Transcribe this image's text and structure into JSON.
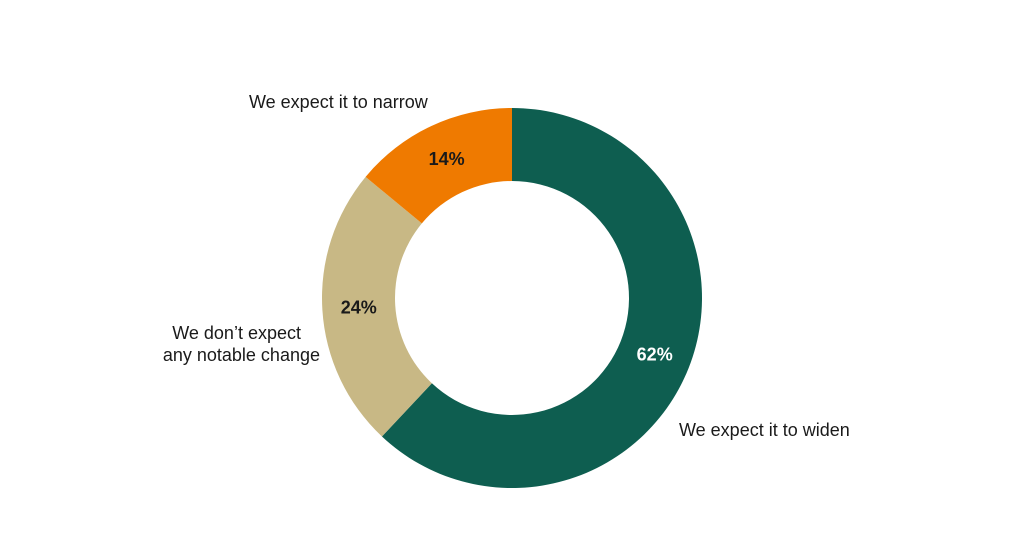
{
  "chart_data": {
    "type": "pie",
    "donut": true,
    "title": "",
    "start": "top",
    "direction": "clockwise",
    "slices": [
      {
        "label": "We expect it to widen",
        "value": 62,
        "value_label": "62%",
        "color": "#0e5e50",
        "value_label_color": "#ffffff"
      },
      {
        "label": "We don’t expect any notable change",
        "label_lines": [
          "We don’t expect",
          "any notable change"
        ],
        "value": 24,
        "value_label": "24%",
        "color": "#c8b885",
        "value_label_color": "#1a1a1a"
      },
      {
        "label": "We expect it to narrow",
        "value": 14,
        "value_label": "14%",
        "color": "#ef7a00",
        "value_label_color": "#1a1a1a"
      }
    ]
  }
}
